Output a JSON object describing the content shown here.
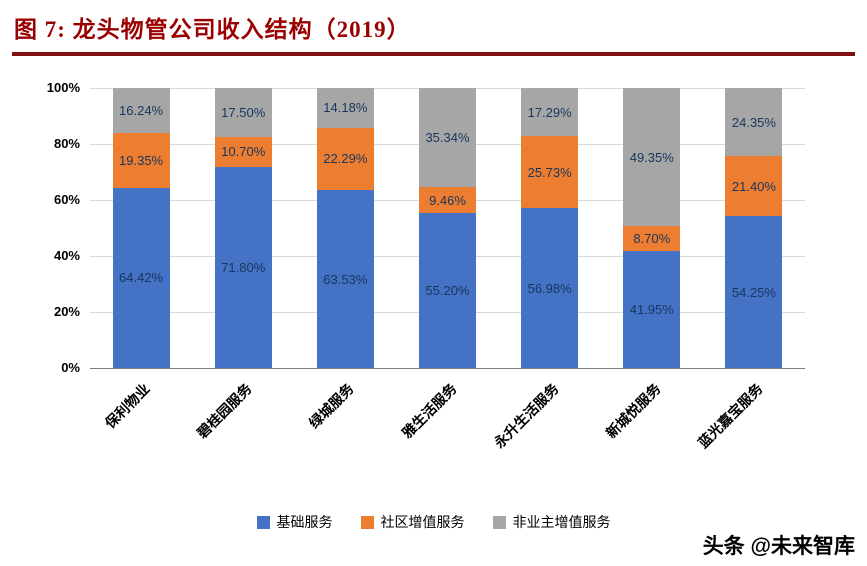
{
  "figure": {
    "title": "图 7:  龙头物管公司收入结构（2019）",
    "accent_color": "#9a0000",
    "rule_color": "#7f1010"
  },
  "watermark": "头条 @未来智库",
  "chart_data": {
    "type": "bar",
    "stacked": true,
    "percent": true,
    "title": "龙头物管公司收入结构（2019）",
    "categories": [
      "保利物业",
      "碧桂园服务",
      "绿城服务",
      "雅生活服务",
      "永升生活服务",
      "新城悦服务",
      "蓝光嘉宝服务"
    ],
    "series": [
      {
        "name": "基础服务",
        "color": "#4472C4",
        "values": [
          64.42,
          71.8,
          63.53,
          55.2,
          56.98,
          41.95,
          54.25
        ],
        "labels": [
          "64.42%",
          "71.80%",
          "63.53%",
          "55.20%",
          "56.98%",
          "41.95%",
          "54.25%"
        ]
      },
      {
        "name": "社区增值服务",
        "color": "#ED7D31",
        "values": [
          19.35,
          10.7,
          22.29,
          9.46,
          25.73,
          8.7,
          21.4
        ],
        "labels": [
          "19.35%",
          "10.70%",
          "22.29%",
          "9.46%",
          "25.73%",
          "8.70%",
          "21.40%"
        ]
      },
      {
        "name": "非业主增值服务",
        "color": "#A6A6A6",
        "values": [
          16.24,
          17.5,
          14.18,
          35.34,
          17.29,
          49.35,
          24.35
        ],
        "labels": [
          "16.24%",
          "17.50%",
          "14.18%",
          "35.34%",
          "17.29%",
          "49.35%",
          "24.35%"
        ]
      }
    ],
    "y_ticks": [
      "0%",
      "20%",
      "40%",
      "60%",
      "80%",
      "100%"
    ],
    "ylim": [
      0,
      100
    ],
    "grid": true,
    "legend_position": "bottom",
    "style": {
      "grid_color": "#D9D9D9",
      "axis_color": "#7F7F7F",
      "label_color": "#17375E",
      "tick_color": "#000000"
    }
  }
}
